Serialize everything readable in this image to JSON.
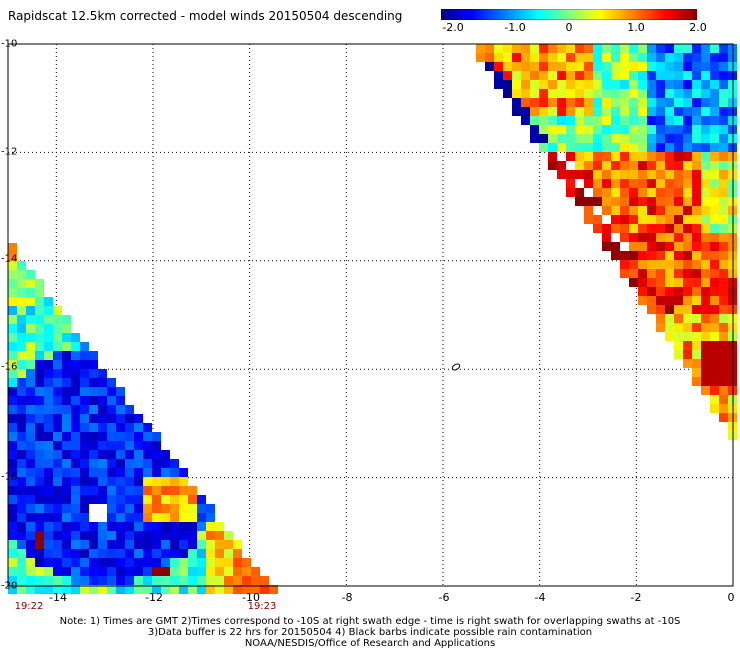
{
  "title": "Rapidscat 12.5km corrected - model winds 20150504 descending",
  "colorbar": {
    "ticks": [
      "-2.0",
      "-1.0",
      "0",
      "1.0",
      "2.0"
    ],
    "colors": [
      "#00008b",
      "#0000ff",
      "#0080ff",
      "#00ffff",
      "#80ff80",
      "#ffff00",
      "#ff8000",
      "#ff0000",
      "#8b0000"
    ]
  },
  "axes": {
    "x_ticks": [
      "-14",
      "-12",
      "-10",
      "-8",
      "-6",
      "-4",
      "-2",
      "0"
    ],
    "y_ticks": [
      "-10",
      "-12",
      "-14",
      "-16",
      "-18",
      "-20"
    ],
    "xlim": [
      -15,
      0
    ],
    "ylim": [
      -20,
      -10
    ],
    "grid": "dotted"
  },
  "times": {
    "left": "19:22",
    "right": "19:23"
  },
  "notes": {
    "line1": "Note: 1) Times are GMT 2)Times correspond to -10S at right swath edge - time is right swath for overlapping swaths at -10S",
    "line2": "3)Data buffer is 22 hrs for 20150504 4) Black barbs indicate possible rain contamination",
    "line3": "NOAA/NESDIS/Office of Research and Applications"
  },
  "chart_data": {
    "type": "heatmap",
    "title": "Rapidscat 12.5km corrected - model winds 20150504 descending",
    "xlabel": "",
    "ylabel": "",
    "xlim": [
      -15,
      0
    ],
    "ylim": [
      -20,
      -10
    ],
    "value_range": [
      -2.0,
      2.0
    ],
    "regions": [
      {
        "description": "upper-right swath",
        "dominant_values": "0 to 2.0 in south part (-12 to -15), -1.0 to 0 in north part"
      },
      {
        "description": "lower-left swath",
        "dominant_values": "-2.0 to -1.0 center, -1.0 to 0.5 edges"
      }
    ]
  }
}
